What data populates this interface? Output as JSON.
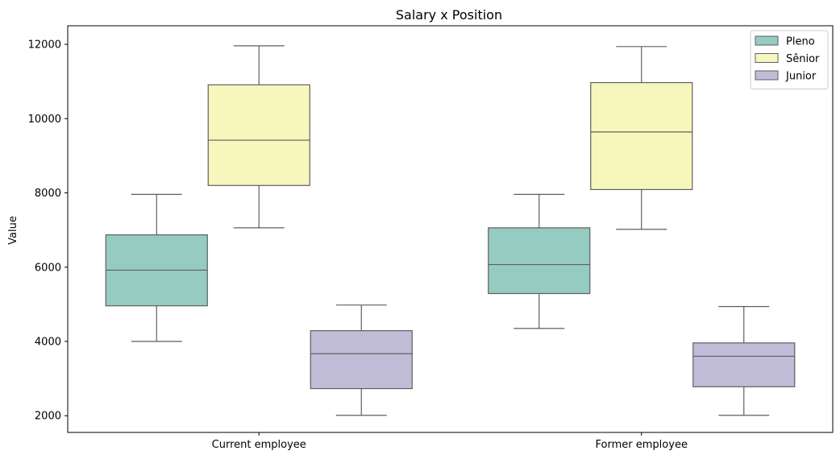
{
  "chart_data": {
    "type": "box",
    "title": "Salary x Position",
    "xlabel": "",
    "ylabel": "Value",
    "ylim": [
      1550,
      12500
    ],
    "yticks": [
      2000,
      4000,
      6000,
      8000,
      10000,
      12000
    ],
    "categories": [
      "Current employee",
      "Former employee"
    ],
    "legend_position": "top-right",
    "grid": false,
    "series": [
      {
        "name": "Pleno",
        "color": "#96cbc1",
        "boxes": [
          {
            "min": 4000,
            "q1": 4960,
            "median": 5920,
            "q3": 6870,
            "max": 7960
          },
          {
            "min": 4350,
            "q1": 5290,
            "median": 6070,
            "q3": 7060,
            "max": 7960
          }
        ]
      },
      {
        "name": "Sênior",
        "color": "#f7f7bd",
        "boxes": [
          {
            "min": 7060,
            "q1": 8200,
            "median": 9420,
            "q3": 10910,
            "max": 11960
          },
          {
            "min": 7020,
            "q1": 8090,
            "median": 9640,
            "q3": 10970,
            "max": 11940
          }
        ]
      },
      {
        "name": "Junior",
        "color": "#c1bdd8",
        "boxes": [
          {
            "min": 2010,
            "q1": 2730,
            "median": 3670,
            "q3": 4290,
            "max": 4980
          },
          {
            "min": 2010,
            "q1": 2780,
            "median": 3600,
            "q3": 3960,
            "max": 4940
          }
        ]
      }
    ]
  }
}
